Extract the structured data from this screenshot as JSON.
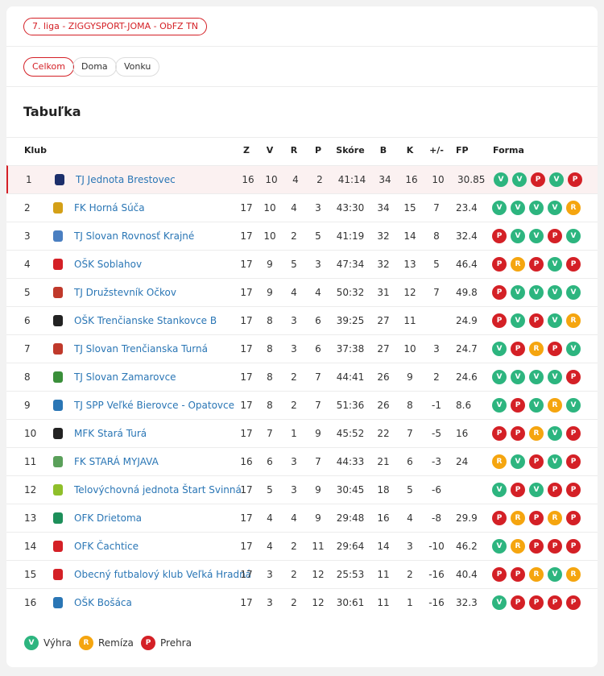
{
  "badge": "7. liga - ZIGGYSPORT-JOMA - ObFZ TN",
  "tabs": [
    "Celkom",
    "Doma",
    "Vonku"
  ],
  "title": "Tabuľka",
  "table": {
    "columns": [
      "Klub",
      "Z",
      "V",
      "R",
      "P",
      "Skóre",
      "B",
      "K",
      "+/-",
      "FP",
      "Forma"
    ],
    "rows": [
      [
        1,
        "TJ Jednota Brestovec",
        16,
        10,
        4,
        2,
        "41:14",
        34,
        16,
        10,
        30.85,
        [
          "V",
          "V",
          "P",
          "V",
          "P"
        ]
      ],
      [
        2,
        "FK Horná Súča",
        17,
        10,
        4,
        3,
        "43:30",
        34,
        15,
        7,
        23.4,
        [
          "V",
          "V",
          "V",
          "V",
          "R"
        ]
      ],
      [
        3,
        "TJ Slovan Rovnosť Krajné",
        17,
        10,
        2,
        5,
        "41:19",
        32,
        14,
        8,
        32.4,
        [
          "P",
          "V",
          "V",
          "P",
          "V"
        ]
      ],
      [
        4,
        "OŠK Soblahov",
        17,
        9,
        5,
        3,
        "47:34",
        32,
        13,
        5,
        46.4,
        [
          "P",
          "R",
          "P",
          "V",
          "P"
        ]
      ],
      [
        5,
        "TJ Družstevník Očkov",
        17,
        9,
        4,
        4,
        "50:32",
        31,
        12,
        7,
        49.8,
        [
          "P",
          "V",
          "V",
          "V",
          "V"
        ]
      ],
      [
        6,
        "OŠK Trenčianske Stankovce B",
        17,
        8,
        3,
        6,
        "39:25",
        27,
        11,
        null,
        24.9,
        [
          "P",
          "V",
          "P",
          "V",
          "R"
        ]
      ],
      [
        7,
        "TJ Slovan Trenčianska Turná",
        17,
        8,
        3,
        6,
        "37:38",
        27,
        10,
        3,
        24.7,
        [
          "V",
          "P",
          "R",
          "P",
          "V"
        ]
      ],
      [
        8,
        "TJ Slovan Zamarovce",
        17,
        8,
        2,
        7,
        "44:41",
        26,
        9,
        2,
        24.6,
        [
          "V",
          "V",
          "V",
          "V",
          "P"
        ]
      ],
      [
        9,
        "TJ SPP Veľké Bierovce - Opatovce",
        17,
        8,
        2,
        7,
        "51:36",
        26,
        8,
        -1,
        8.6,
        [
          "V",
          "P",
          "V",
          "R",
          "V"
        ]
      ],
      [
        10,
        "MFK Stará Turá",
        17,
        7,
        1,
        9,
        "45:52",
        22,
        7,
        -5,
        16,
        [
          "P",
          "P",
          "R",
          "V",
          "P"
        ]
      ],
      [
        11,
        "FK STARÁ MYJAVA",
        16,
        6,
        3,
        7,
        "44:33",
        21,
        6,
        -3,
        24,
        [
          "R",
          "V",
          "P",
          "V",
          "P"
        ]
      ],
      [
        12,
        "Telovýchovná jednota Štart Svinná",
        17,
        5,
        3,
        9,
        "30:45",
        18,
        5,
        -6,
        null,
        [
          "V",
          "P",
          "V",
          "P",
          "P"
        ]
      ],
      [
        13,
        "OFK Drietoma",
        17,
        4,
        4,
        9,
        "29:48",
        16,
        4,
        -8,
        29.9,
        [
          "P",
          "R",
          "P",
          "R",
          "P"
        ]
      ],
      [
        14,
        "OFK Čachtice",
        17,
        4,
        2,
        11,
        "29:64",
        14,
        3,
        -10,
        46.2,
        [
          "V",
          "R",
          "P",
          "P",
          "P"
        ]
      ],
      [
        15,
        "Obecný futbalový klub Veľká Hradná",
        17,
        3,
        2,
        12,
        "25:53",
        11,
        2,
        -16,
        40.4,
        [
          "P",
          "P",
          "R",
          "V",
          "R"
        ]
      ],
      [
        16,
        "OŠK Bošáca",
        17,
        3,
        2,
        12,
        "30:61",
        11,
        1,
        -16,
        32.3,
        [
          "V",
          "P",
          "P",
          "P",
          "P"
        ]
      ]
    ]
  },
  "legend": [
    {
      "key": "V",
      "label": "Výhra",
      "color": "#2db57f"
    },
    {
      "key": "R",
      "label": "Remíza",
      "color": "#f5a50f"
    },
    {
      "key": "P",
      "label": "Prehra",
      "color": "#d42026"
    }
  ]
}
